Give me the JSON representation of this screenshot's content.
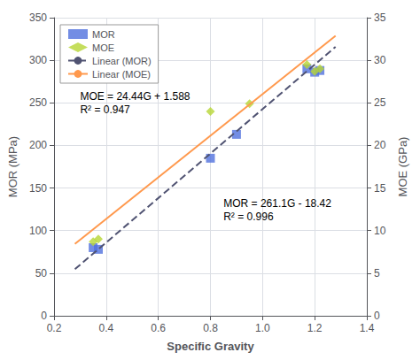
{
  "chart_data": {
    "type": "scatter",
    "xlabel": "Specific Gravity",
    "ylabel": "MOR (MPa)",
    "y2label": "MOE (GPa)",
    "xlim": [
      0.2,
      1.4
    ],
    "xticks": [
      0.2,
      0.4,
      0.6,
      0.8,
      {
        "value": 1.0,
        "label": "1.0"
      },
      1.2,
      1.4
    ],
    "ylim": [
      0,
      350
    ],
    "yticks": [
      0,
      50,
      100,
      150,
      200,
      250,
      300,
      350
    ],
    "y2lim": [
      0,
      35
    ],
    "y2ticks": [
      0,
      5,
      10,
      15,
      20,
      25,
      30,
      35
    ],
    "grid": true,
    "legend": "upper left",
    "series": [
      {
        "name": "MOR",
        "type": "scatter",
        "marker": "square",
        "x": [
          0.35,
          0.37,
          0.8,
          0.9,
          1.17,
          1.2,
          1.22
        ],
        "values": [
          80,
          78,
          185,
          213,
          290,
          286,
          288
        ]
      },
      {
        "name": "MOE",
        "type": "scatter",
        "marker": "diamond",
        "axis": "y2",
        "x": [
          0.35,
          0.37,
          0.8,
          0.95,
          1.17,
          1.2,
          1.22
        ],
        "values": [
          8.7,
          9.0,
          24.0,
          24.9,
          29.5,
          28.7,
          29.0
        ]
      },
      {
        "name": "Linear (MOR)",
        "type": "line",
        "line_style": "dashed",
        "x": [
          0.28,
          1.28
        ],
        "values": [
          54.688,
          315.788
        ]
      },
      {
        "name": "Linear (MOE)",
        "type": "line",
        "line_style": "solid",
        "axis": "y2",
        "x": [
          0.28,
          1.28
        ],
        "values": [
          8.4312,
          32.8712
        ]
      }
    ],
    "annotations": [
      [
        "MOE = 24.44G + 1.588",
        "R² = 0.947"
      ],
      [
        "MOR = 261.1G - 18.42",
        "R² = 0.996"
      ]
    ]
  }
}
